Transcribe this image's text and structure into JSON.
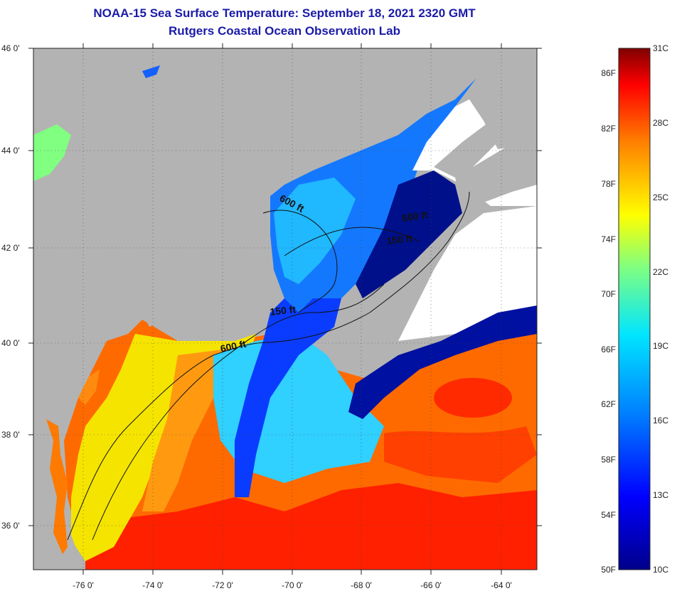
{
  "header": {
    "title": "NOAA-15 Sea Surface Temperature:  September 18, 2021 2320 GMT",
    "subtitle": "Rutgers Coastal Ocean Observation Lab"
  },
  "map": {
    "lat_labels": [
      "46 0'",
      "44 0'",
      "42 0'",
      "40 0'",
      "38 0'",
      "36 0'"
    ],
    "lon_labels": [
      "-76 0'",
      "-74 0'",
      "-72 0'",
      "-70 0'",
      "-68 0'",
      "-66 0'",
      "-64 0'"
    ],
    "contour_labels": [
      "600 ft",
      "600 ft",
      "150 ft",
      "600 ft",
      "150 ft"
    ],
    "colors": {
      "land": "#b3b3b3",
      "cloud": "#ffffff"
    }
  },
  "colorbar": {
    "fahrenheit": [
      "86F",
      "82F",
      "78F",
      "74F",
      "70F",
      "66F",
      "62F",
      "58F",
      "54F",
      "50F"
    ],
    "celsius": [
      "31C",
      "28C",
      "25C",
      "22C",
      "19C",
      "16C",
      "13C",
      "10C"
    ]
  }
}
